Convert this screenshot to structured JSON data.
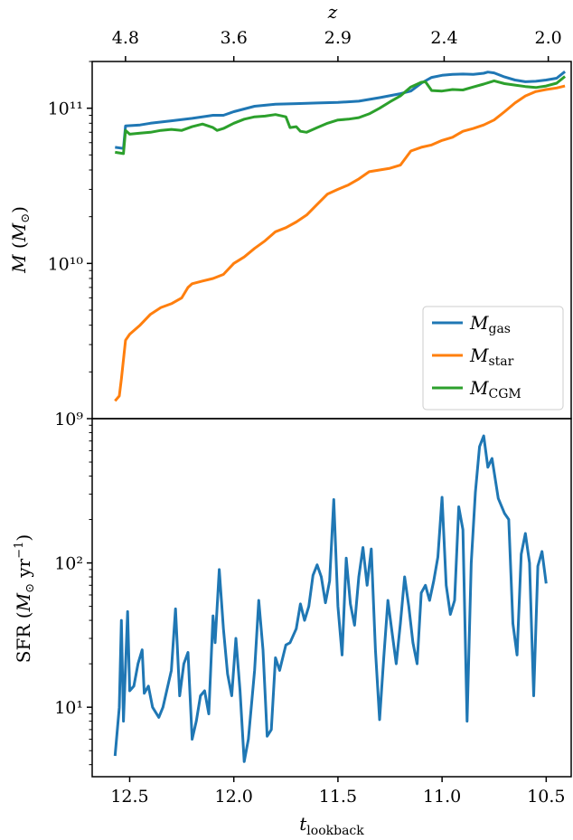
{
  "chart_data": [
    {
      "type": "line",
      "panel": "top",
      "ylabel": "M (M⊙)",
      "yscale": "log",
      "ylim": [
        1000000000.0,
        200000000000.0
      ],
      "yticks": [
        {
          "value": 1000000000.0,
          "label": "10⁹"
        },
        {
          "value": 10000000000.0,
          "label": "10¹⁰"
        },
        {
          "value": 100000000000.0,
          "label": "10¹¹"
        }
      ],
      "xlim": [
        12.68,
        10.38
      ],
      "top_axis_label": "z",
      "top_ticks": [
        {
          "t": 12.52,
          "label": "4.8"
        },
        {
          "t": 12.0,
          "label": "3.6"
        },
        {
          "t": 11.5,
          "label": "2.9"
        },
        {
          "t": 10.99,
          "label": "2.4"
        },
        {
          "t": 10.49,
          "label": "2.0"
        }
      ],
      "legend_position": "lower-right",
      "series": [
        {
          "name": "gas",
          "legend_main": "M",
          "legend_sub": "gas",
          "color": "#1f77b4",
          "points": [
            [
              12.57,
              56000000000.0
            ],
            [
              12.53,
              55000000000.0
            ],
            [
              12.52,
              77000000000.0
            ],
            [
              12.45,
              78000000000.0
            ],
            [
              12.4,
              80000000000.0
            ],
            [
              12.3,
              83000000000.0
            ],
            [
              12.2,
              86000000000.0
            ],
            [
              12.1,
              90000000000.0
            ],
            [
              12.05,
              90000000000.0
            ],
            [
              12.0,
              95000000000.0
            ],
            [
              11.9,
              103000000000.0
            ],
            [
              11.8,
              106000000000.0
            ],
            [
              11.7,
              107000000000.0
            ],
            [
              11.6,
              108000000000.0
            ],
            [
              11.5,
              109000000000.0
            ],
            [
              11.4,
              111000000000.0
            ],
            [
              11.3,
              117000000000.0
            ],
            [
              11.2,
              124000000000.0
            ],
            [
              11.15,
              129000000000.0
            ],
            [
              11.1,
              145000000000.0
            ],
            [
              11.05,
              158000000000.0
            ],
            [
              11.0,
              163000000000.0
            ],
            [
              10.95,
              165000000000.0
            ],
            [
              10.9,
              166000000000.0
            ],
            [
              10.85,
              165000000000.0
            ],
            [
              10.8,
              168000000000.0
            ],
            [
              10.78,
              171000000000.0
            ],
            [
              10.75,
              169000000000.0
            ],
            [
              10.7,
              159000000000.0
            ],
            [
              10.65,
              152000000000.0
            ],
            [
              10.6,
              148000000000.0
            ],
            [
              10.55,
              149000000000.0
            ],
            [
              10.5,
              152000000000.0
            ],
            [
              10.45,
              156000000000.0
            ],
            [
              10.41,
              172000000000.0
            ]
          ]
        },
        {
          "name": "star",
          "legend_main": "M",
          "legend_sub": "star",
          "color": "#ff7f0e",
          "points": [
            [
              12.57,
              1300000000.0
            ],
            [
              12.55,
              1400000000.0
            ],
            [
              12.54,
              1800000000.0
            ],
            [
              12.52,
              3200000000.0
            ],
            [
              12.5,
              3500000000.0
            ],
            [
              12.45,
              4000000000.0
            ],
            [
              12.4,
              4700000000.0
            ],
            [
              12.35,
              5200000000.0
            ],
            [
              12.3,
              5500000000.0
            ],
            [
              12.25,
              6000000000.0
            ],
            [
              12.22,
              7000000000.0
            ],
            [
              12.2,
              7400000000.0
            ],
            [
              12.15,
              7700000000.0
            ],
            [
              12.1,
              8000000000.0
            ],
            [
              12.05,
              8500000000.0
            ],
            [
              12.0,
              10000000000.0
            ],
            [
              11.95,
              11000000000.0
            ],
            [
              11.9,
              12500000000.0
            ],
            [
              11.85,
              14000000000.0
            ],
            [
              11.8,
              16000000000.0
            ],
            [
              11.75,
              17000000000.0
            ],
            [
              11.7,
              18500000000.0
            ],
            [
              11.65,
              20500000000.0
            ],
            [
              11.6,
              24000000000.0
            ],
            [
              11.55,
              28000000000.0
            ],
            [
              11.5,
              30000000000.0
            ],
            [
              11.45,
              32000000000.0
            ],
            [
              11.4,
              35000000000.0
            ],
            [
              11.35,
              39000000000.0
            ],
            [
              11.3,
              40000000000.0
            ],
            [
              11.25,
              41000000000.0
            ],
            [
              11.2,
              43000000000.0
            ],
            [
              11.15,
              53000000000.0
            ],
            [
              11.1,
              56000000000.0
            ],
            [
              11.05,
              58000000000.0
            ],
            [
              11.0,
              62000000000.0
            ],
            [
              10.95,
              65000000000.0
            ],
            [
              10.9,
              71000000000.0
            ],
            [
              10.85,
              74000000000.0
            ],
            [
              10.8,
              78000000000.0
            ],
            [
              10.75,
              84000000000.0
            ],
            [
              10.7,
              95000000000.0
            ],
            [
              10.65,
              108000000000.0
            ],
            [
              10.6,
              120000000000.0
            ],
            [
              10.55,
              128000000000.0
            ],
            [
              10.5,
              132000000000.0
            ],
            [
              10.45,
              135000000000.0
            ],
            [
              10.41,
              139000000000.0
            ]
          ]
        },
        {
          "name": "CGM",
          "legend_main": "M",
          "legend_sub": "CGM",
          "color": "#2ca02c",
          "points": [
            [
              12.57,
              52000000000.0
            ],
            [
              12.53,
              51000000000.0
            ],
            [
              12.52,
              72000000000.0
            ],
            [
              12.5,
              68000000000.0
            ],
            [
              12.45,
              69000000000.0
            ],
            [
              12.4,
              70000000000.0
            ],
            [
              12.35,
              72000000000.0
            ],
            [
              12.3,
              73000000000.0
            ],
            [
              12.25,
              72000000000.0
            ],
            [
              12.2,
              76000000000.0
            ],
            [
              12.15,
              79000000000.0
            ],
            [
              12.1,
              75000000000.0
            ],
            [
              12.08,
              72000000000.0
            ],
            [
              12.05,
              74000000000.0
            ],
            [
              12.0,
              80000000000.0
            ],
            [
              11.95,
              85000000000.0
            ],
            [
              11.9,
              88000000000.0
            ],
            [
              11.85,
              89000000000.0
            ],
            [
              11.8,
              91000000000.0
            ],
            [
              11.75,
              88000000000.0
            ],
            [
              11.73,
              75000000000.0
            ],
            [
              11.7,
              76000000000.0
            ],
            [
              11.68,
              71000000000.0
            ],
            [
              11.65,
              70000000000.0
            ],
            [
              11.6,
              75000000000.0
            ],
            [
              11.55,
              80000000000.0
            ],
            [
              11.5,
              84000000000.0
            ],
            [
              11.45,
              85000000000.0
            ],
            [
              11.4,
              87000000000.0
            ],
            [
              11.35,
              92000000000.0
            ],
            [
              11.3,
              100000000000.0
            ],
            [
              11.25,
              110000000000.0
            ],
            [
              11.2,
              120000000000.0
            ],
            [
              11.15,
              137000000000.0
            ],
            [
              11.1,
              147000000000.0
            ],
            [
              11.08,
              148000000000.0
            ],
            [
              11.05,
              130000000000.0
            ],
            [
              11.0,
              129000000000.0
            ],
            [
              10.95,
              132000000000.0
            ],
            [
              10.9,
              131000000000.0
            ],
            [
              10.85,
              137000000000.0
            ],
            [
              10.8,
              143000000000.0
            ],
            [
              10.75,
              150000000000.0
            ],
            [
              10.7,
              144000000000.0
            ],
            [
              10.65,
              141000000000.0
            ],
            [
              10.6,
              138000000000.0
            ],
            [
              10.55,
              136000000000.0
            ],
            [
              10.5,
              139000000000.0
            ],
            [
              10.45,
              145000000000.0
            ],
            [
              10.41,
              160000000000.0
            ]
          ]
        }
      ]
    },
    {
      "type": "line",
      "panel": "bottom",
      "ylabel": "SFR (M⊙ yr⁻¹)",
      "yscale": "log",
      "ylim": [
        3.3,
        1000
      ],
      "yticks": [
        {
          "value": 10,
          "label": "10¹"
        },
        {
          "value": 100,
          "label": "10²"
        }
      ],
      "xlabel": "t_lookback",
      "xlim": [
        12.68,
        10.38
      ],
      "xticks": [
        {
          "value": 12.5,
          "label": "12.5"
        },
        {
          "value": 12.0,
          "label": "12.0"
        },
        {
          "value": 11.5,
          "label": "11.5"
        },
        {
          "value": 11.0,
          "label": "11.0"
        },
        {
          "value": 10.5,
          "label": "10.5"
        }
      ],
      "series": [
        {
          "name": "SFR",
          "color": "#1f77b4",
          "points": [
            [
              12.57,
              4.6
            ],
            [
              12.55,
              10
            ],
            [
              12.54,
              40
            ],
            [
              12.53,
              8
            ],
            [
              12.51,
              46
            ],
            [
              12.5,
              13
            ],
            [
              12.48,
              14
            ],
            [
              12.46,
              20
            ],
            [
              12.44,
              25
            ],
            [
              12.43,
              12.5
            ],
            [
              12.41,
              14
            ],
            [
              12.39,
              10
            ],
            [
              12.36,
              8.5
            ],
            [
              12.34,
              10
            ],
            [
              12.3,
              18
            ],
            [
              12.28,
              48
            ],
            [
              12.26,
              12
            ],
            [
              12.24,
              20
            ],
            [
              12.22,
              24
            ],
            [
              12.2,
              6
            ],
            [
              12.18,
              8
            ],
            [
              12.16,
              12
            ],
            [
              12.14,
              13
            ],
            [
              12.12,
              9
            ],
            [
              12.1,
              43
            ],
            [
              12.09,
              28
            ],
            [
              12.07,
              90
            ],
            [
              12.05,
              35
            ],
            [
              12.03,
              17
            ],
            [
              12.01,
              12
            ],
            [
              11.99,
              30
            ],
            [
              11.97,
              13
            ],
            [
              11.95,
              4.2
            ],
            [
              11.93,
              6
            ],
            [
              11.9,
              18
            ],
            [
              11.88,
              55
            ],
            [
              11.86,
              25
            ],
            [
              11.84,
              6.3
            ],
            [
              11.82,
              7
            ],
            [
              11.8,
              22
            ],
            [
              11.78,
              18
            ],
            [
              11.75,
              27
            ],
            [
              11.73,
              28
            ],
            [
              11.7,
              35
            ],
            [
              11.68,
              52
            ],
            [
              11.66,
              40
            ],
            [
              11.64,
              50
            ],
            [
              11.62,
              82
            ],
            [
              11.6,
              97
            ],
            [
              11.58,
              80
            ],
            [
              11.56,
              53
            ],
            [
              11.54,
              75
            ],
            [
              11.52,
              275
            ],
            [
              11.5,
              50
            ],
            [
              11.48,
              23
            ],
            [
              11.46,
              108
            ],
            [
              11.44,
              52
            ],
            [
              11.42,
              37
            ],
            [
              11.4,
              80
            ],
            [
              11.38,
              128
            ],
            [
              11.36,
              70
            ],
            [
              11.34,
              125
            ],
            [
              11.32,
              25
            ],
            [
              11.3,
              8.2
            ],
            [
              11.28,
              22
            ],
            [
              11.26,
              55
            ],
            [
              11.24,
              33
            ],
            [
              11.22,
              20
            ],
            [
              11.2,
              38
            ],
            [
              11.18,
              80
            ],
            [
              11.16,
              50
            ],
            [
              11.14,
              28
            ],
            [
              11.12,
              20
            ],
            [
              11.1,
              62
            ],
            [
              11.08,
              70
            ],
            [
              11.06,
              55
            ],
            [
              11.04,
              75
            ],
            [
              11.02,
              110
            ],
            [
              11.0,
              285
            ],
            [
              10.98,
              70
            ],
            [
              10.96,
              44
            ],
            [
              10.94,
              55
            ],
            [
              10.92,
              245
            ],
            [
              10.9,
              170
            ],
            [
              10.88,
              8
            ],
            [
              10.86,
              100
            ],
            [
              10.84,
              310
            ],
            [
              10.82,
              640
            ],
            [
              10.8,
              760
            ],
            [
              10.78,
              460
            ],
            [
              10.76,
              530
            ],
            [
              10.73,
              280
            ],
            [
              10.7,
              220
            ],
            [
              10.68,
              200
            ],
            [
              10.66,
              38
            ],
            [
              10.64,
              23
            ],
            [
              10.62,
              115
            ],
            [
              10.6,
              160
            ],
            [
              10.58,
              100
            ],
            [
              10.56,
              12
            ],
            [
              10.54,
              95
            ],
            [
              10.52,
              120
            ],
            [
              10.5,
              72
            ]
          ]
        }
      ]
    }
  ]
}
